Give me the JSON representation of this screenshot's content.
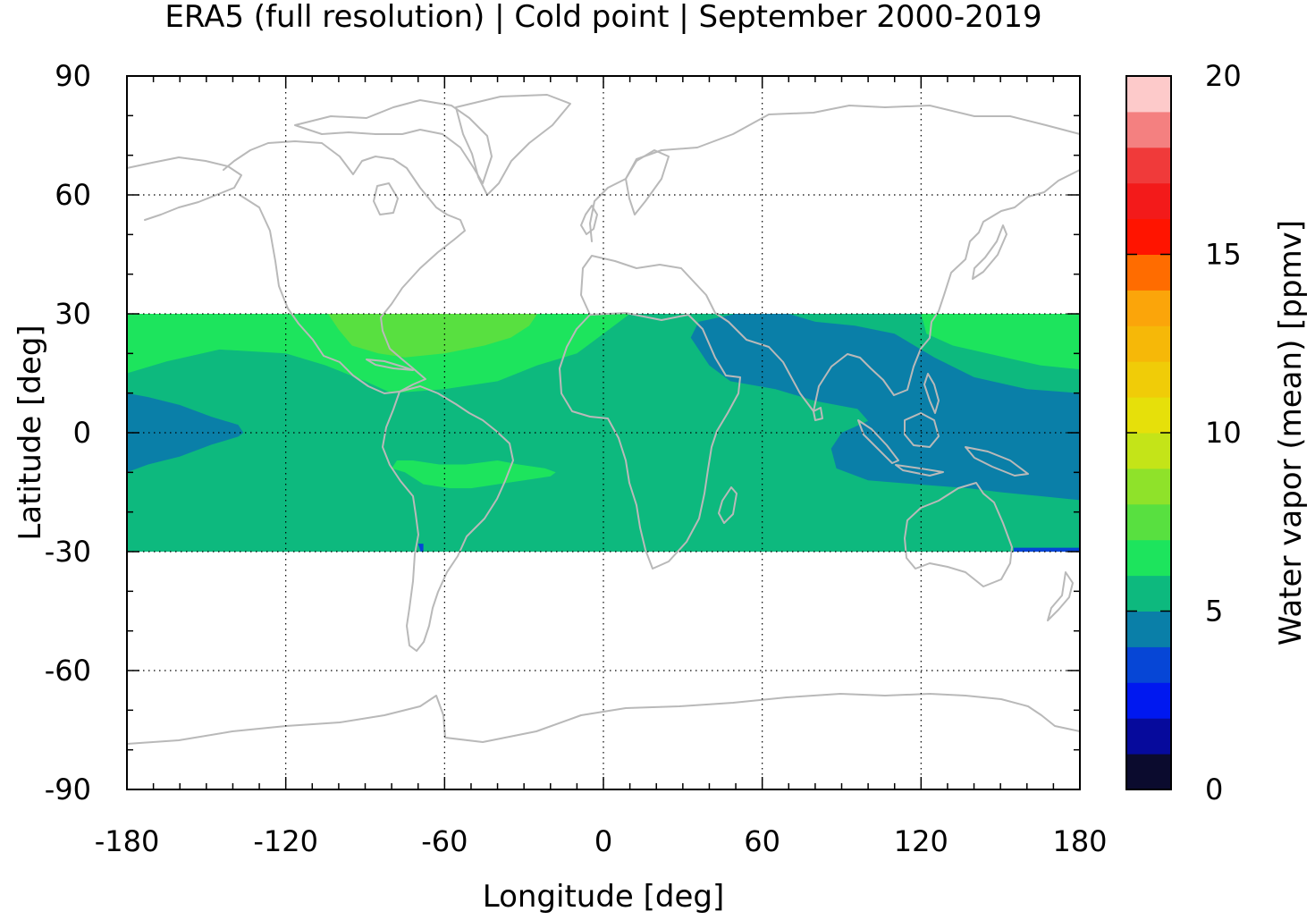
{
  "chart_data": {
    "type": "heatmap",
    "title": "ERA5 (full resolution) | Cold point | September 2000-2019",
    "xlabel": "Longitude [deg]",
    "ylabel": "Latitude [deg]",
    "colorbar_label": "Water vapor (mean) [ppmv]",
    "xlim": [
      -180,
      180
    ],
    "ylim": [
      -90,
      90
    ],
    "xticks": [
      "-180",
      "-120",
      "-60",
      "0",
      "60",
      "120",
      "180"
    ],
    "yticks": [
      "90",
      "60",
      "30",
      "0",
      "-30",
      "-60",
      "-90"
    ],
    "xtick_values": [
      -180,
      -120,
      -60,
      0,
      60,
      120,
      180
    ],
    "ytick_values": [
      90,
      60,
      30,
      0,
      -30,
      -60,
      -90
    ],
    "colorbar_ticks": [
      "20",
      "15",
      "10",
      "5",
      "0"
    ],
    "colorbar_tick_values": [
      20,
      15,
      10,
      5,
      0
    ],
    "colorbar_range": [
      0,
      20
    ],
    "grid": true,
    "data_lat_range": [
      -30,
      30
    ],
    "color_levels": [
      {
        "from": 0,
        "to": 1,
        "color": "#0b0b2e"
      },
      {
        "from": 1,
        "to": 2,
        "color": "#060a9c"
      },
      {
        "from": 2,
        "to": 3,
        "color": "#0018f0"
      },
      {
        "from": 3,
        "to": 4,
        "color": "#0646d6"
      },
      {
        "from": 4,
        "to": 5,
        "color": "#0a7fa8"
      },
      {
        "from": 5,
        "to": 6,
        "color": "#0db97e"
      },
      {
        "from": 6,
        "to": 7,
        "color": "#1de45d"
      },
      {
        "from": 7,
        "to": 8,
        "color": "#58e040"
      },
      {
        "from": 8,
        "to": 9,
        "color": "#8fe22a"
      },
      {
        "from": 9,
        "to": 10,
        "color": "#c4e418"
      },
      {
        "from": 10,
        "to": 11,
        "color": "#e6e00a"
      },
      {
        "from": 11,
        "to": 12,
        "color": "#f0cc08"
      },
      {
        "from": 12,
        "to": 13,
        "color": "#f6b808"
      },
      {
        "from": 13,
        "to": 14,
        "color": "#fba50a"
      },
      {
        "from": 14,
        "to": 15,
        "color": "#ff6c00"
      },
      {
        "from": 15,
        "to": 16,
        "color": "#ff1400"
      },
      {
        "from": 16,
        "to": 17,
        "color": "#f31a1a"
      },
      {
        "from": 17,
        "to": 18,
        "color": "#f03a3a"
      },
      {
        "from": 18,
        "to": 19,
        "color": "#f48080"
      },
      {
        "from": 19,
        "to": 20,
        "color": "#fdcaca"
      }
    ],
    "fields": [
      {
        "level": "5-6",
        "color": "#0db97e",
        "polygon": [
          [
            -180,
            -30
          ],
          [
            180,
            -30
          ],
          [
            180,
            30
          ],
          [
            -180,
            30
          ]
        ]
      },
      {
        "level": "6-7",
        "color": "#1de45d",
        "polygon": [
          [
            -180,
            30
          ],
          [
            -180,
            15
          ],
          [
            -165,
            18
          ],
          [
            -145,
            21
          ],
          [
            -120,
            20
          ],
          [
            -105,
            17
          ],
          [
            -90,
            13
          ],
          [
            -80,
            10
          ],
          [
            -60,
            11
          ],
          [
            -40,
            13
          ],
          [
            -25,
            17
          ],
          [
            -10,
            20
          ],
          [
            0,
            25
          ],
          [
            10,
            30
          ]
        ]
      },
      {
        "level": "7-8",
        "color": "#58e040",
        "polygon": [
          [
            -104,
            30
          ],
          [
            -100,
            26
          ],
          [
            -95,
            22
          ],
          [
            -85,
            20
          ],
          [
            -75,
            19
          ],
          [
            -60,
            20
          ],
          [
            -45,
            22
          ],
          [
            -35,
            24
          ],
          [
            -28,
            27
          ],
          [
            -25,
            30
          ]
        ]
      },
      {
        "level": "6-7",
        "color": "#1de45d",
        "polygon": [
          [
            -80,
            -9
          ],
          [
            -75,
            -10
          ],
          [
            -68,
            -13
          ],
          [
            -58,
            -14
          ],
          [
            -50,
            -14
          ],
          [
            -40,
            -13
          ],
          [
            -30,
            -12
          ],
          [
            -20,
            -11
          ],
          [
            -18,
            -10
          ],
          [
            -22,
            -9
          ],
          [
            -32,
            -8
          ],
          [
            -40,
            -7
          ],
          [
            -52,
            -8
          ],
          [
            -62,
            -8
          ],
          [
            -72,
            -7
          ],
          [
            -78,
            -7
          ]
        ]
      },
      {
        "level": "6-7",
        "color": "#1de45d",
        "polygon": [
          [
            120,
            30
          ],
          [
            122,
            25
          ],
          [
            132,
            22
          ],
          [
            145,
            20
          ],
          [
            165,
            17
          ],
          [
            180,
            16
          ],
          [
            180,
            30
          ]
        ]
      },
      {
        "level": "4-5",
        "color": "#0a7fa8",
        "polygon": [
          [
            -180,
            10
          ],
          [
            -172,
            9
          ],
          [
            -160,
            7
          ],
          [
            -148,
            4
          ],
          [
            -138,
            2
          ],
          [
            -136,
            0
          ],
          [
            -138,
            -1
          ],
          [
            -148,
            -3
          ],
          [
            -160,
            -6
          ],
          [
            -172,
            -8
          ],
          [
            -180,
            -10
          ]
        ]
      },
      {
        "level": "4-5",
        "color": "#0a7fa8",
        "polygon": [
          [
            33,
            24
          ],
          [
            36,
            28
          ],
          [
            50,
            30
          ],
          [
            70,
            30
          ],
          [
            80,
            28
          ],
          [
            95,
            27
          ],
          [
            110,
            25
          ],
          [
            125,
            19
          ],
          [
            140,
            14
          ],
          [
            160,
            11
          ],
          [
            180,
            10
          ],
          [
            180,
            -17
          ],
          [
            165,
            -16
          ],
          [
            150,
            -15
          ],
          [
            138,
            -14
          ],
          [
            118,
            -13
          ],
          [
            100,
            -12
          ],
          [
            88,
            -9
          ],
          [
            86,
            -4
          ],
          [
            90,
            0
          ],
          [
            100,
            3
          ],
          [
            96,
            6
          ],
          [
            80,
            8
          ],
          [
            65,
            11
          ],
          [
            48,
            13
          ],
          [
            40,
            17
          ]
        ]
      },
      {
        "level": "3-4",
        "color": "#0646d6",
        "polygon": [
          [
            -70,
            -28
          ],
          [
            -69,
            -30
          ],
          [
            -68,
            -30
          ],
          [
            -68,
            -28
          ]
        ]
      },
      {
        "level": "3-4",
        "color": "#0646d6",
        "polygon": [
          [
            155,
            -29
          ],
          [
            168,
            -29
          ],
          [
            180,
            -29
          ],
          [
            180,
            -30
          ],
          [
            155,
            -30
          ]
        ]
      }
    ]
  }
}
